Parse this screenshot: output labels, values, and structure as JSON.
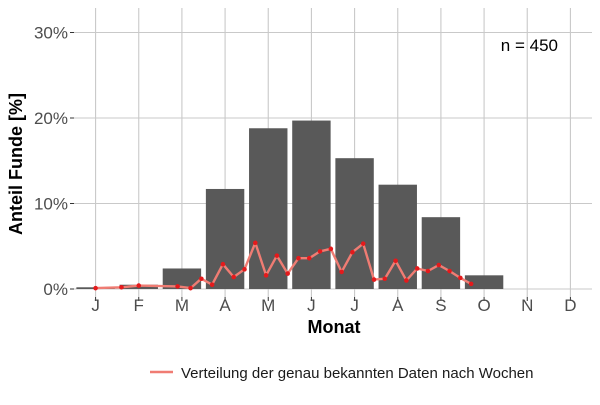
{
  "chart_data": {
    "type": "bar",
    "xlabel": "Monat",
    "ylabel": "Anteil Funde [%]",
    "categories": [
      "J",
      "F",
      "M",
      "A",
      "M",
      "J",
      "J",
      "A",
      "S",
      "O",
      "N",
      "D"
    ],
    "ylim": [
      0,
      33
    ],
    "yticks": [
      0,
      10,
      20,
      30
    ],
    "ytick_labels": [
      "0%",
      "10%",
      "20%",
      "30%"
    ],
    "grid": true,
    "bar_color": "#595959",
    "line_color": "#f07c73",
    "point_color": "#e41a1c",
    "annotation": "n = 450",
    "legend_position": "bottom-right",
    "series": [
      {
        "kind": "bar",
        "values": [
          0.2,
          0.5,
          2.4,
          11.7,
          18.8,
          19.7,
          15.3,
          12.2,
          8.4,
          1.6,
          0.0,
          0.0
        ]
      },
      {
        "kind": "line",
        "name": "Verteilung der genau bekannten Daten nach Wochen",
        "x": [
          0.0,
          0.6,
          1.0,
          1.9,
          2.2,
          2.45,
          2.7,
          2.95,
          3.2,
          3.45,
          3.7,
          3.95,
          4.2,
          4.45,
          4.7,
          4.95,
          5.2,
          5.45,
          5.7,
          5.95,
          6.2,
          6.45,
          6.7,
          6.95,
          7.2,
          7.45,
          7.7,
          7.95,
          8.2,
          8.45,
          8.7
        ],
        "y": [
          0.1,
          0.2,
          0.4,
          0.3,
          0.1,
          1.2,
          0.5,
          2.9,
          1.4,
          2.3,
          5.4,
          1.6,
          3.9,
          1.8,
          3.6,
          3.6,
          4.4,
          4.7,
          2.0,
          4.3,
          5.3,
          1.1,
          1.2,
          3.3,
          1.0,
          2.4,
          2.1,
          2.8,
          2.1,
          1.3,
          0.6
        ]
      }
    ]
  }
}
